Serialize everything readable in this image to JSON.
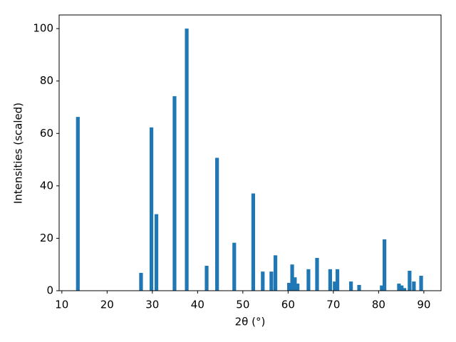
{
  "chart_data": {
    "type": "bar",
    "xlabel": "2θ (°)",
    "ylabel": "Intensities (scaled)",
    "x": [
      13.54,
      27.5,
      29.8,
      30.9,
      34.9,
      37.6,
      42.0,
      44.3,
      48.1,
      52.3,
      54.4,
      56.3,
      57.2,
      60.2,
      60.9,
      61.5,
      62.1,
      64.5,
      66.4,
      69.3,
      70.3,
      70.9,
      73.9,
      75.7,
      80.7,
      81.3,
      84.5,
      85.1,
      85.7,
      86.85,
      87.8,
      89.4
    ],
    "values": [
      66.3,
      6.8,
      62.3,
      29.2,
      74.2,
      100,
      9.5,
      50.7,
      18.3,
      37.1,
      7.3,
      7.3,
      13.5,
      3.0,
      10.0,
      5.1,
      2.7,
      8.2,
      12.5,
      8.2,
      3.5,
      8.2,
      3.5,
      2.2,
      2.0,
      19.6,
      2.7,
      2.0,
      1.0,
      7.6,
      3.5,
      5.7
    ],
    "color": "#1f77b4",
    "xlim": [
      9.4,
      93.8
    ],
    "ylim": [
      0,
      105.2
    ],
    "xticks": [
      10,
      20,
      30,
      40,
      50,
      60,
      70,
      80,
      90
    ],
    "yticks": [
      0,
      20,
      40,
      60,
      80,
      100
    ],
    "grid": false
  }
}
